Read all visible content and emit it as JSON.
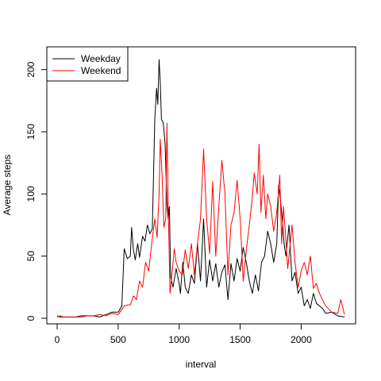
{
  "chart_data": {
    "type": "line",
    "title": "",
    "xlabel": "interval",
    "ylabel": "Average steps",
    "xlim": [
      0,
      2355
    ],
    "ylim": [
      0,
      210
    ],
    "xticks": [
      0,
      500,
      1000,
      1500,
      2000
    ],
    "yticks": [
      0,
      50,
      100,
      150,
      200
    ],
    "grid": false,
    "legend_position": "top-left",
    "series": [
      {
        "name": "Weekday",
        "color": "#000000",
        "points": [
          [
            0,
            2
          ],
          [
            25,
            1
          ],
          [
            50,
            1
          ],
          [
            100,
            1
          ],
          [
            150,
            1
          ],
          [
            200,
            2
          ],
          [
            250,
            2
          ],
          [
            300,
            2
          ],
          [
            350,
            1
          ],
          [
            400,
            3
          ],
          [
            450,
            5
          ],
          [
            500,
            5
          ],
          [
            530,
            10
          ],
          [
            550,
            56
          ],
          [
            575,
            48
          ],
          [
            600,
            50
          ],
          [
            610,
            73
          ],
          [
            625,
            55
          ],
          [
            640,
            47
          ],
          [
            660,
            60
          ],
          [
            675,
            49
          ],
          [
            700,
            66
          ],
          [
            720,
            62
          ],
          [
            740,
            75
          ],
          [
            760,
            68
          ],
          [
            780,
            72
          ],
          [
            800,
            160
          ],
          [
            815,
            185
          ],
          [
            825,
            172
          ],
          [
            835,
            208
          ],
          [
            845,
            190
          ],
          [
            855,
            160
          ],
          [
            870,
            157
          ],
          [
            885,
            140
          ],
          [
            900,
            92
          ],
          [
            910,
            80
          ],
          [
            920,
            90
          ],
          [
            930,
            33
          ],
          [
            950,
            25
          ],
          [
            975,
            40
          ],
          [
            1000,
            28
          ],
          [
            1010,
            20
          ],
          [
            1030,
            45
          ],
          [
            1050,
            25
          ],
          [
            1075,
            20
          ],
          [
            1100,
            35
          ],
          [
            1125,
            28
          ],
          [
            1150,
            60
          ],
          [
            1175,
            30
          ],
          [
            1200,
            80
          ],
          [
            1225,
            25
          ],
          [
            1250,
            47
          ],
          [
            1275,
            30
          ],
          [
            1300,
            44
          ],
          [
            1325,
            25
          ],
          [
            1350,
            37
          ],
          [
            1375,
            43
          ],
          [
            1400,
            15
          ],
          [
            1425,
            44
          ],
          [
            1450,
            30
          ],
          [
            1475,
            48
          ],
          [
            1500,
            38
          ],
          [
            1525,
            57
          ],
          [
            1550,
            45
          ],
          [
            1575,
            30
          ],
          [
            1600,
            20
          ],
          [
            1625,
            35
          ],
          [
            1650,
            22
          ],
          [
            1675,
            45
          ],
          [
            1700,
            50
          ],
          [
            1725,
            70
          ],
          [
            1750,
            60
          ],
          [
            1775,
            45
          ],
          [
            1800,
            60
          ],
          [
            1815,
            107
          ],
          [
            1830,
            95
          ],
          [
            1845,
            80
          ],
          [
            1860,
            60
          ],
          [
            1875,
            50
          ],
          [
            1900,
            75
          ],
          [
            1925,
            30
          ],
          [
            1950,
            37
          ],
          [
            1975,
            20
          ],
          [
            2000,
            25
          ],
          [
            2025,
            10
          ],
          [
            2050,
            15
          ],
          [
            2075,
            8
          ],
          [
            2100,
            20
          ],
          [
            2125,
            12
          ],
          [
            2150,
            10
          ],
          [
            2175,
            8
          ],
          [
            2200,
            4
          ],
          [
            2250,
            5
          ],
          [
            2300,
            2
          ],
          [
            2355,
            1
          ]
        ]
      },
      {
        "name": "Weekend",
        "color": "#ff0000",
        "points": [
          [
            0,
            1
          ],
          [
            25,
            2
          ],
          [
            50,
            1
          ],
          [
            100,
            1
          ],
          [
            150,
            1
          ],
          [
            200,
            1
          ],
          [
            250,
            2
          ],
          [
            300,
            2
          ],
          [
            350,
            3
          ],
          [
            400,
            2
          ],
          [
            450,
            4
          ],
          [
            500,
            3
          ],
          [
            550,
            10
          ],
          [
            600,
            11
          ],
          [
            625,
            18
          ],
          [
            650,
            15
          ],
          [
            675,
            30
          ],
          [
            700,
            25
          ],
          [
            725,
            45
          ],
          [
            750,
            38
          ],
          [
            775,
            60
          ],
          [
            800,
            80
          ],
          [
            820,
            65
          ],
          [
            835,
            100
          ],
          [
            845,
            144
          ],
          [
            860,
            115
          ],
          [
            875,
            73
          ],
          [
            890,
            80
          ],
          [
            900,
            157
          ],
          [
            910,
            90
          ],
          [
            925,
            20
          ],
          [
            940,
            35
          ],
          [
            960,
            56
          ],
          [
            975,
            45
          ],
          [
            1000,
            38
          ],
          [
            1025,
            35
          ],
          [
            1050,
            55
          ],
          [
            1075,
            40
          ],
          [
            1100,
            60
          ],
          [
            1125,
            35
          ],
          [
            1150,
            60
          ],
          [
            1175,
            80
          ],
          [
            1200,
            136
          ],
          [
            1225,
            80
          ],
          [
            1250,
            52
          ],
          [
            1275,
            110
          ],
          [
            1300,
            50
          ],
          [
            1325,
            90
          ],
          [
            1350,
            127
          ],
          [
            1375,
            100
          ],
          [
            1400,
            35
          ],
          [
            1425,
            75
          ],
          [
            1450,
            85
          ],
          [
            1475,
            111
          ],
          [
            1500,
            80
          ],
          [
            1525,
            30
          ],
          [
            1550,
            55
          ],
          [
            1575,
            75
          ],
          [
            1600,
            97
          ],
          [
            1615,
            117
          ],
          [
            1625,
            110
          ],
          [
            1640,
            100
          ],
          [
            1655,
            140
          ],
          [
            1670,
            85
          ],
          [
            1690,
            115
          ],
          [
            1710,
            80
          ],
          [
            1725,
            100
          ],
          [
            1750,
            90
          ],
          [
            1775,
            70
          ],
          [
            1800,
            85
          ],
          [
            1825,
            115
          ],
          [
            1840,
            60
          ],
          [
            1855,
            90
          ],
          [
            1870,
            70
          ],
          [
            1890,
            40
          ],
          [
            1910,
            60
          ],
          [
            1925,
            75
          ],
          [
            1950,
            45
          ],
          [
            1975,
            25
          ],
          [
            2000,
            38
          ],
          [
            2025,
            45
          ],
          [
            2050,
            35
          ],
          [
            2075,
            50
          ],
          [
            2100,
            24
          ],
          [
            2125,
            28
          ],
          [
            2150,
            20
          ],
          [
            2175,
            15
          ],
          [
            2200,
            10
          ],
          [
            2250,
            5
          ],
          [
            2300,
            4
          ],
          [
            2325,
            15
          ],
          [
            2355,
            3
          ]
        ]
      }
    ]
  }
}
